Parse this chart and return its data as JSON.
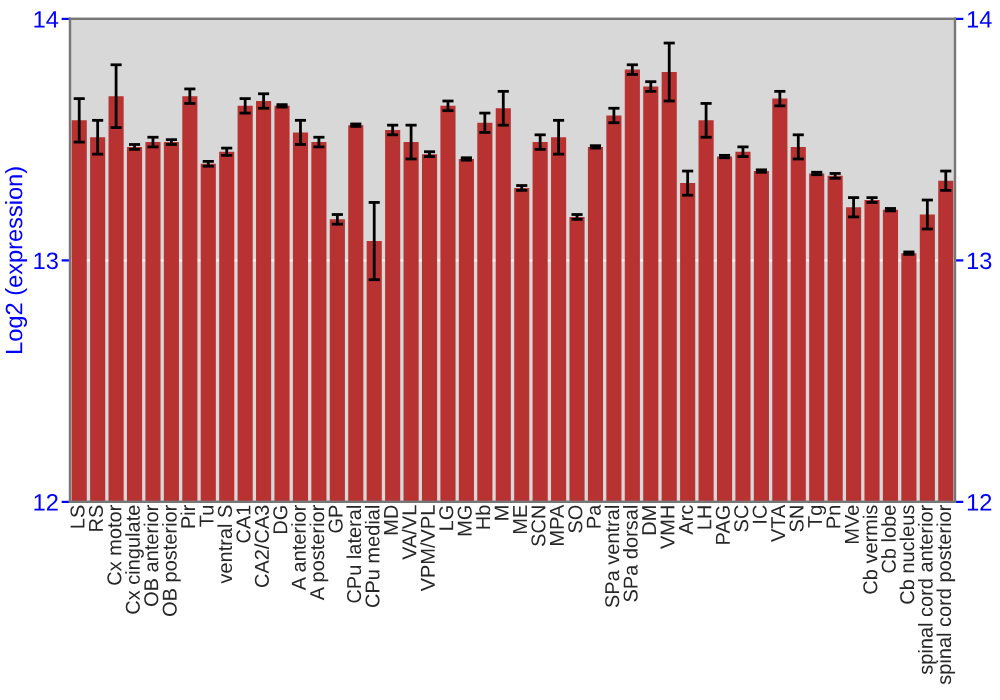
{
  "chart_data": {
    "type": "bar",
    "ylabel": "Log2 (expression)",
    "categories": [
      "LS",
      "RS",
      "Cx motor",
      "Cx cingulate",
      "OB anterior",
      "OB posterior",
      "Pir",
      "Tu",
      "ventral S",
      "CA1",
      "CA2/CA3",
      "DG",
      "A anterior",
      "A posterior",
      "GP",
      "CPu lateral",
      "CPu medial",
      "MD",
      "VA/VL",
      "VPM/VPL",
      "LG",
      "MG",
      "Hb",
      "M",
      "ME",
      "SCN",
      "MPA",
      "SO",
      "Pa",
      "SPa ventral",
      "SPa dorsal",
      "DM",
      "VMH",
      "Arc",
      "LH",
      "PAG",
      "SC",
      "IC",
      "VTA",
      "SN",
      "Tg",
      "Pn",
      "MVe",
      "Cb vermis",
      "Cb lobe",
      "Cb nucleus",
      "spinal cord anterior",
      "spinal cord posterior"
    ],
    "series": [
      {
        "color": "#b83232",
        "values": [
          13.58,
          13.51,
          13.68,
          13.47,
          13.49,
          13.49,
          13.68,
          13.4,
          13.45,
          13.64,
          13.66,
          13.64,
          13.53,
          13.49,
          13.17,
          13.56,
          13.08,
          13.54,
          13.49,
          13.44,
          13.64,
          13.42,
          13.57,
          13.63,
          13.3,
          13.49,
          13.51,
          13.18,
          13.47,
          13.6,
          13.79,
          13.72,
          13.78,
          13.32,
          13.58,
          13.43,
          13.45,
          13.37,
          13.67,
          13.47,
          13.36,
          13.35,
          13.22,
          13.25,
          13.21,
          13.03,
          13.19,
          13.33
        ],
        "errors": [
          0.09,
          0.07,
          0.13,
          0.01,
          0.02,
          0.01,
          0.03,
          0.01,
          0.015,
          0.03,
          0.03,
          0.005,
          0.05,
          0.02,
          0.02,
          0.005,
          0.16,
          0.02,
          0.07,
          0.01,
          0.02,
          0.005,
          0.04,
          0.07,
          0.01,
          0.03,
          0.07,
          0.01,
          0.005,
          0.03,
          0.02,
          0.02,
          0.12,
          0.05,
          0.07,
          0.005,
          0.02,
          0.005,
          0.03,
          0.05,
          0.005,
          0.01,
          0.04,
          0.01,
          0.005,
          0.005,
          0.06,
          0.04
        ]
      }
    ],
    "ylim": [
      12,
      14
    ],
    "yticks": [
      12,
      13,
      14
    ],
    "y2lim": [
      12,
      14
    ],
    "y2ticks": [
      12,
      13,
      14
    ],
    "grid": "y",
    "legend": false
  }
}
